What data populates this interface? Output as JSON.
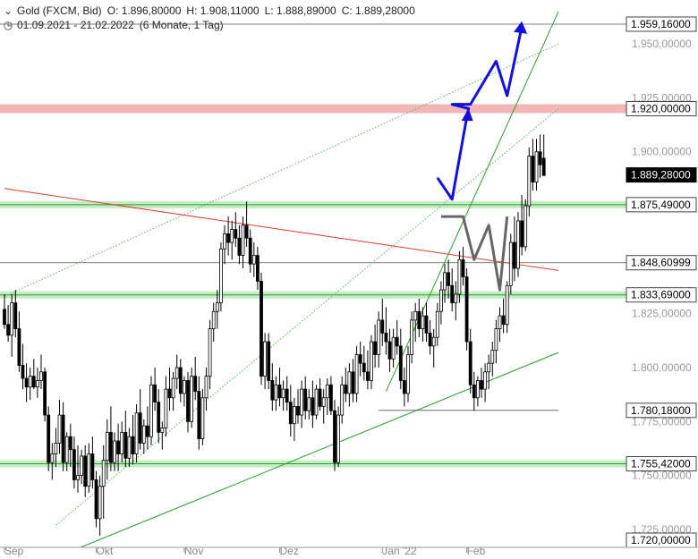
{
  "header": {
    "instrument": "Gold (FXCM, Bid)",
    "open": "O: 1.896,80000",
    "high": "H: 1.908,11000",
    "low": "L: 1.888,89000",
    "close": "C: 1.889,28000",
    "range": "01.09.2021 - 21.02.2022",
    "period": "(6 Monate, 1 Tag)"
  },
  "icons": {
    "collapse": "chevron-down-icon",
    "clock": "clock-icon"
  },
  "colors": {
    "up_candle": "#ffffff",
    "down_candle": "#000000",
    "support": "#2a9d2a",
    "support_zone": "#c6ecc6",
    "resistance_zone": "#f3b6b6",
    "downtrend": "#e03a2e",
    "bull_path": "#1010e0",
    "bear_path": "#666666",
    "channel_dotted": "#58b858"
  },
  "chart_data": {
    "type": "candlestick",
    "x_ticks": [
      "Sep",
      "Okt",
      "Nov",
      "Dez",
      "Jan '22",
      "Feb"
    ],
    "y_ticks": [
      "1.950,00000",
      "1.925,00000",
      "1.900,00000",
      "1.825,00000",
      "1.800,00000",
      "1.775,00000",
      "1.750,00000",
      "1.725,00000"
    ],
    "ylim": [
      1715,
      1965
    ],
    "price_labels": [
      {
        "text": "1.959,16000",
        "value": 1959.16
      },
      {
        "text": "1.920,00000",
        "value": 1920.0
      },
      {
        "text": "1.889,28000",
        "value": 1889.28,
        "current": true
      },
      {
        "text": "1.875,49000",
        "value": 1875.49
      },
      {
        "text": "1.848,60999",
        "value": 1848.61
      },
      {
        "text": "1.833,69000",
        "value": 1833.69
      },
      {
        "text": "1.780,18000",
        "value": 1780.18
      },
      {
        "text": "1.755,42000",
        "value": 1755.42
      },
      {
        "text": "1.720,00000",
        "value": 1720.0
      }
    ],
    "candles": [
      [
        1827,
        1834,
        1818,
        1820
      ],
      [
        1820,
        1829,
        1812,
        1815
      ],
      [
        1815,
        1834,
        1805,
        1830
      ],
      [
        1830,
        1836,
        1814,
        1818
      ],
      [
        1818,
        1826,
        1798,
        1801
      ],
      [
        1801,
        1811,
        1790,
        1795
      ],
      [
        1795,
        1802,
        1784,
        1791
      ],
      [
        1791,
        1800,
        1785,
        1796
      ],
      [
        1796,
        1804,
        1790,
        1791
      ],
      [
        1791,
        1800,
        1786,
        1794
      ],
      [
        1794,
        1806,
        1790,
        1798
      ],
      [
        1798,
        1800,
        1775,
        1778
      ],
      [
        1778,
        1782,
        1752,
        1756
      ],
      [
        1756,
        1765,
        1748,
        1760
      ],
      [
        1760,
        1772,
        1754,
        1765
      ],
      [
        1765,
        1785,
        1760,
        1778
      ],
      [
        1778,
        1784,
        1752,
        1756
      ],
      [
        1756,
        1770,
        1752,
        1768
      ],
      [
        1768,
        1774,
        1754,
        1762
      ],
      [
        1762,
        1768,
        1744,
        1748
      ],
      [
        1748,
        1764,
        1742,
        1750
      ],
      [
        1750,
        1762,
        1746,
        1759
      ],
      [
        1759,
        1764,
        1740,
        1745
      ],
      [
        1745,
        1765,
        1742,
        1760
      ],
      [
        1760,
        1768,
        1744,
        1748
      ],
      [
        1748,
        1752,
        1726,
        1730
      ],
      [
        1730,
        1750,
        1722,
        1745
      ],
      [
        1745,
        1764,
        1730,
        1757
      ],
      [
        1757,
        1776,
        1748,
        1770
      ],
      [
        1770,
        1782,
        1752,
        1756
      ],
      [
        1756,
        1770,
        1752,
        1766
      ],
      [
        1766,
        1774,
        1752,
        1760
      ],
      [
        1760,
        1775,
        1756,
        1770
      ],
      [
        1770,
        1780,
        1754,
        1758
      ],
      [
        1758,
        1772,
        1754,
        1768
      ],
      [
        1768,
        1778,
        1755,
        1760
      ],
      [
        1760,
        1783,
        1756,
        1779
      ],
      [
        1779,
        1790,
        1762,
        1765
      ],
      [
        1765,
        1776,
        1760,
        1773
      ],
      [
        1773,
        1782,
        1762,
        1768
      ],
      [
        1768,
        1796,
        1764,
        1792
      ],
      [
        1792,
        1800,
        1780,
        1784
      ],
      [
        1784,
        1790,
        1765,
        1770
      ],
      [
        1770,
        1775,
        1762,
        1772
      ],
      [
        1772,
        1796,
        1768,
        1790
      ],
      [
        1790,
        1800,
        1780,
        1786
      ],
      [
        1786,
        1798,
        1780,
        1795
      ],
      [
        1795,
        1806,
        1790,
        1800
      ],
      [
        1800,
        1804,
        1784,
        1788
      ],
      [
        1788,
        1796,
        1782,
        1794
      ],
      [
        1794,
        1798,
        1770,
        1775
      ],
      [
        1775,
        1800,
        1772,
        1796
      ],
      [
        1796,
        1805,
        1785,
        1789
      ],
      [
        1789,
        1796,
        1762,
        1767
      ],
      [
        1767,
        1790,
        1764,
        1786
      ],
      [
        1786,
        1800,
        1780,
        1796
      ],
      [
        1796,
        1822,
        1790,
        1818
      ],
      [
        1818,
        1830,
        1812,
        1826
      ],
      [
        1826,
        1836,
        1818,
        1830
      ],
      [
        1830,
        1858,
        1826,
        1855
      ],
      [
        1855,
        1866,
        1848,
        1862
      ],
      [
        1862,
        1870,
        1852,
        1858
      ],
      [
        1858,
        1868,
        1850,
        1864
      ],
      [
        1864,
        1872,
        1856,
        1860
      ],
      [
        1860,
        1866,
        1848,
        1852
      ],
      [
        1852,
        1870,
        1846,
        1866
      ],
      [
        1866,
        1877,
        1856,
        1860
      ],
      [
        1860,
        1864,
        1844,
        1848
      ],
      [
        1848,
        1858,
        1842,
        1852
      ],
      [
        1852,
        1856,
        1836,
        1840
      ],
      [
        1840,
        1844,
        1792,
        1796
      ],
      [
        1796,
        1816,
        1790,
        1812
      ],
      [
        1812,
        1816,
        1790,
        1794
      ],
      [
        1794,
        1802,
        1780,
        1785
      ],
      [
        1785,
        1796,
        1780,
        1792
      ],
      [
        1792,
        1800,
        1782,
        1786
      ],
      [
        1786,
        1794,
        1780,
        1790
      ],
      [
        1790,
        1796,
        1780,
        1784
      ],
      [
        1784,
        1792,
        1768,
        1774
      ],
      [
        1774,
        1786,
        1766,
        1782
      ],
      [
        1782,
        1790,
        1774,
        1778
      ],
      [
        1778,
        1794,
        1772,
        1790
      ],
      [
        1790,
        1796,
        1776,
        1780
      ],
      [
        1780,
        1790,
        1776,
        1786
      ],
      [
        1786,
        1794,
        1772,
        1778
      ],
      [
        1778,
        1792,
        1776,
        1790
      ],
      [
        1790,
        1795,
        1780,
        1782
      ],
      [
        1782,
        1790,
        1774,
        1786
      ],
      [
        1786,
        1795,
        1778,
        1792
      ],
      [
        1792,
        1796,
        1778,
        1780
      ],
      [
        1780,
        1785,
        1752,
        1756
      ],
      [
        1756,
        1782,
        1754,
        1778
      ],
      [
        1778,
        1796,
        1774,
        1792
      ],
      [
        1792,
        1800,
        1784,
        1788
      ],
      [
        1788,
        1802,
        1782,
        1798
      ],
      [
        1798,
        1804,
        1784,
        1788
      ],
      [
        1788,
        1810,
        1784,
        1806
      ],
      [
        1806,
        1812,
        1796,
        1802
      ],
      [
        1802,
        1810,
        1794,
        1798
      ],
      [
        1798,
        1808,
        1790,
        1794
      ],
      [
        1794,
        1815,
        1790,
        1812
      ],
      [
        1812,
        1820,
        1800,
        1806
      ],
      [
        1806,
        1826,
        1800,
        1822
      ],
      [
        1822,
        1832,
        1810,
        1816
      ],
      [
        1816,
        1828,
        1806,
        1812
      ],
      [
        1812,
        1818,
        1798,
        1804
      ],
      [
        1804,
        1818,
        1800,
        1814
      ],
      [
        1814,
        1822,
        1806,
        1810
      ],
      [
        1810,
        1818,
        1790,
        1794
      ],
      [
        1794,
        1800,
        1782,
        1788
      ],
      [
        1788,
        1810,
        1784,
        1806
      ],
      [
        1806,
        1826,
        1802,
        1822
      ],
      [
        1822,
        1830,
        1812,
        1826
      ],
      [
        1826,
        1832,
        1814,
        1818
      ],
      [
        1818,
        1828,
        1812,
        1824
      ],
      [
        1824,
        1830,
        1812,
        1816
      ],
      [
        1816,
        1822,
        1806,
        1810
      ],
      [
        1810,
        1818,
        1800,
        1814
      ],
      [
        1814,
        1830,
        1810,
        1826
      ],
      [
        1826,
        1840,
        1820,
        1836
      ],
      [
        1836,
        1848,
        1830,
        1844
      ],
      [
        1844,
        1850,
        1832,
        1838
      ],
      [
        1838,
        1846,
        1826,
        1830
      ],
      [
        1830,
        1840,
        1822,
        1834
      ],
      [
        1834,
        1854,
        1830,
        1850
      ],
      [
        1850,
        1856,
        1838,
        1842
      ],
      [
        1842,
        1846,
        1808,
        1812
      ],
      [
        1812,
        1818,
        1788,
        1792
      ],
      [
        1792,
        1798,
        1780,
        1786
      ],
      [
        1786,
        1796,
        1782,
        1794
      ],
      [
        1794,
        1800,
        1786,
        1790
      ],
      [
        1790,
        1802,
        1784,
        1798
      ],
      [
        1798,
        1806,
        1790,
        1802
      ],
      [
        1802,
        1812,
        1796,
        1808
      ],
      [
        1808,
        1822,
        1802,
        1818
      ],
      [
        1818,
        1828,
        1812,
        1824
      ],
      [
        1824,
        1832,
        1816,
        1820
      ],
      [
        1820,
        1840,
        1816,
        1838
      ],
      [
        1838,
        1862,
        1834,
        1858
      ],
      [
        1858,
        1870,
        1840,
        1846
      ],
      [
        1846,
        1872,
        1842,
        1868
      ],
      [
        1868,
        1880,
        1852,
        1856
      ],
      [
        1856,
        1878,
        1854,
        1875
      ],
      [
        1875,
        1902,
        1870,
        1898
      ],
      [
        1898,
        1906,
        1882,
        1886
      ],
      [
        1886,
        1906,
        1882,
        1900
      ],
      [
        1900,
        1908,
        1888,
        1894
      ],
      [
        1897,
        1908,
        1889,
        1889
      ]
    ],
    "levels": [
      {
        "value": 1959.16,
        "style": "thin"
      },
      {
        "value": 1875.49,
        "style": "zone-green"
      },
      {
        "value": 1848.61,
        "style": "thin"
      },
      {
        "value": 1833.69,
        "style": "zone-green"
      },
      {
        "value": 1755.42,
        "style": "zone-green"
      },
      {
        "value": 1920.0,
        "style": "zone-red"
      }
    ],
    "lines": [
      {
        "from": [
          0,
          1883
        ],
        "to": [
          151,
          1845
        ],
        "style": "downtrend"
      },
      {
        "from": [
          14,
          1712
        ],
        "to": [
          151,
          1807
        ],
        "style": "support"
      },
      {
        "from": [
          104,
          1789
        ],
        "to": [
          151,
          1965
        ],
        "style": "support"
      },
      {
        "from": [
          0,
          1833
        ],
        "to": [
          151,
          1950
        ],
        "style": "dotted"
      },
      {
        "from": [
          14,
          1727
        ],
        "to": [
          151,
          1920
        ],
        "style": "dotted"
      },
      {
        "from": [
          102,
          1780.18
        ],
        "to": [
          151,
          1780.18
        ],
        "style": "thin"
      }
    ],
    "projection_bull": [
      [
        118,
        1888
      ],
      [
        122,
        1878
      ],
      [
        126,
        1916
      ],
      [
        126.5,
        1920
      ],
      [
        122,
        1922
      ],
      [
        127,
        1922
      ],
      [
        134,
        1942
      ],
      [
        137,
        1926
      ],
      [
        141,
        1958
      ]
    ],
    "projection_bear": [
      [
        119,
        1870
      ],
      [
        125,
        1870
      ],
      [
        128,
        1850
      ],
      [
        132,
        1866
      ],
      [
        135,
        1836
      ],
      [
        137,
        1870
      ]
    ]
  }
}
